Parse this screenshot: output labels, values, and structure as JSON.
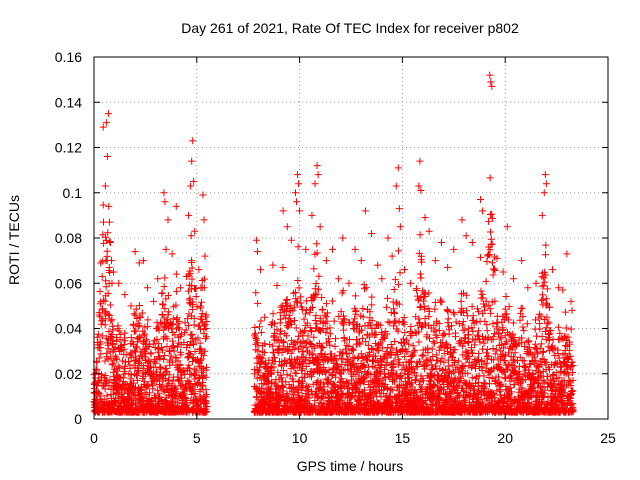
{
  "chart_data": {
    "type": "scatter",
    "title": "Day 261 of 2021, Rate Of TEC Index for receiver p802",
    "xlabel": "GPS time / hours",
    "ylabel": "ROTI / TECUs",
    "xlim": [
      0,
      25
    ],
    "ylim": [
      0,
      0.16
    ],
    "x_ticks": [
      "0",
      "5",
      "10",
      "15",
      "20",
      "25"
    ],
    "y_ticks": [
      "0",
      "0.02",
      "0.04",
      "0.06",
      "0.08",
      "0.1",
      "0.12",
      "0.14",
      "0.16"
    ],
    "grid": true,
    "marker": "plus",
    "colors": {
      "series": "#ff0000"
    },
    "coverage": [
      [
        0,
        5.5
      ],
      [
        7.8,
        23.3
      ]
    ],
    "series": [
      {
        "points": [
          [
            0.1,
            0.022
          ],
          [
            0.25,
            0.047
          ],
          [
            0.4,
            0.063
          ],
          [
            0.45,
            0.129
          ],
          [
            0.55,
            0.103
          ],
          [
            0.6,
            0.131
          ],
          [
            0.65,
            0.116
          ],
          [
            0.7,
            0.135
          ],
          [
            0.72,
            0.094
          ],
          [
            0.75,
            0.087
          ],
          [
            0.8,
            0.078
          ],
          [
            0.85,
            0.07
          ],
          [
            0.95,
            0.065
          ],
          [
            1.2,
            0.06
          ],
          [
            1.5,
            0.055
          ],
          [
            1.8,
            0.05
          ],
          [
            2.0,
            0.074
          ],
          [
            2.2,
            0.069
          ],
          [
            2.4,
            0.07
          ],
          [
            2.6,
            0.058
          ],
          [
            2.9,
            0.052
          ],
          [
            3.1,
            0.062
          ],
          [
            3.4,
            0.1
          ],
          [
            3.45,
            0.096
          ],
          [
            3.5,
            0.075
          ],
          [
            3.6,
            0.088
          ],
          [
            3.8,
            0.073
          ],
          [
            4.0,
            0.094
          ],
          [
            4.2,
            0.058
          ],
          [
            4.5,
            0.063
          ],
          [
            4.6,
            0.09
          ],
          [
            4.7,
            0.103
          ],
          [
            4.75,
            0.114
          ],
          [
            4.8,
            0.123
          ],
          [
            4.85,
            0.105
          ],
          [
            4.9,
            0.083
          ],
          [
            5.1,
            0.066
          ],
          [
            5.2,
            0.058
          ],
          [
            5.3,
            0.099
          ],
          [
            5.35,
            0.088
          ],
          [
            5.4,
            0.072
          ],
          [
            5.45,
            0.04
          ],
          [
            7.9,
            0.079
          ],
          [
            7.95,
            0.074
          ],
          [
            8.1,
            0.066
          ],
          [
            8.3,
            0.045
          ],
          [
            8.7,
            0.068
          ],
          [
            8.9,
            0.059
          ],
          [
            9.2,
            0.092
          ],
          [
            9.4,
            0.085
          ],
          [
            9.6,
            0.079
          ],
          [
            9.8,
            0.1
          ],
          [
            9.85,
            0.096
          ],
          [
            9.9,
            0.108
          ],
          [
            9.95,
            0.104
          ],
          [
            10.0,
            0.092
          ],
          [
            10.3,
            0.075
          ],
          [
            10.6,
            0.09
          ],
          [
            10.75,
            0.104
          ],
          [
            10.85,
            0.112
          ],
          [
            10.9,
            0.108
          ],
          [
            11.0,
            0.085
          ],
          [
            11.3,
            0.07
          ],
          [
            11.6,
            0.075
          ],
          [
            11.9,
            0.062
          ],
          [
            12.1,
            0.08
          ],
          [
            12.4,
            0.06
          ],
          [
            12.7,
            0.075
          ],
          [
            13.0,
            0.07
          ],
          [
            13.2,
            0.092
          ],
          [
            13.5,
            0.082
          ],
          [
            13.8,
            0.068
          ],
          [
            14.0,
            0.062
          ],
          [
            14.3,
            0.08
          ],
          [
            14.5,
            0.072
          ],
          [
            14.7,
            0.103
          ],
          [
            14.8,
            0.111
          ],
          [
            14.85,
            0.093
          ],
          [
            14.9,
            0.085
          ],
          [
            15.1,
            0.066
          ],
          [
            15.4,
            0.06
          ],
          [
            15.8,
            0.103
          ],
          [
            15.85,
            0.114
          ],
          [
            15.9,
            0.101
          ],
          [
            16.1,
            0.089
          ],
          [
            16.3,
            0.083
          ],
          [
            16.6,
            0.07
          ],
          [
            16.9,
            0.078
          ],
          [
            17.2,
            0.067
          ],
          [
            17.5,
            0.075
          ],
          [
            17.9,
            0.088
          ],
          [
            18.1,
            0.081
          ],
          [
            18.4,
            0.078
          ],
          [
            18.8,
            0.097
          ],
          [
            18.9,
            0.092
          ],
          [
            19.2,
            0.076
          ],
          [
            19.25,
            0.152
          ],
          [
            19.3,
            0.149
          ],
          [
            19.35,
            0.147
          ],
          [
            19.6,
            0.071
          ],
          [
            19.9,
            0.065
          ],
          [
            20.1,
            0.085
          ],
          [
            20.4,
            0.062
          ],
          [
            20.8,
            0.07
          ],
          [
            21.1,
            0.058
          ],
          [
            21.5,
            0.06
          ],
          [
            21.8,
            0.09
          ],
          [
            21.9,
            0.1
          ],
          [
            21.95,
            0.108
          ],
          [
            22.0,
            0.104
          ],
          [
            22.3,
            0.066
          ],
          [
            22.6,
            0.058
          ],
          [
            22.8,
            0.057
          ],
          [
            23.0,
            0.073
          ],
          [
            23.2,
            0.052
          ],
          [
            23.25,
            0.048
          ]
        ]
      }
    ]
  }
}
